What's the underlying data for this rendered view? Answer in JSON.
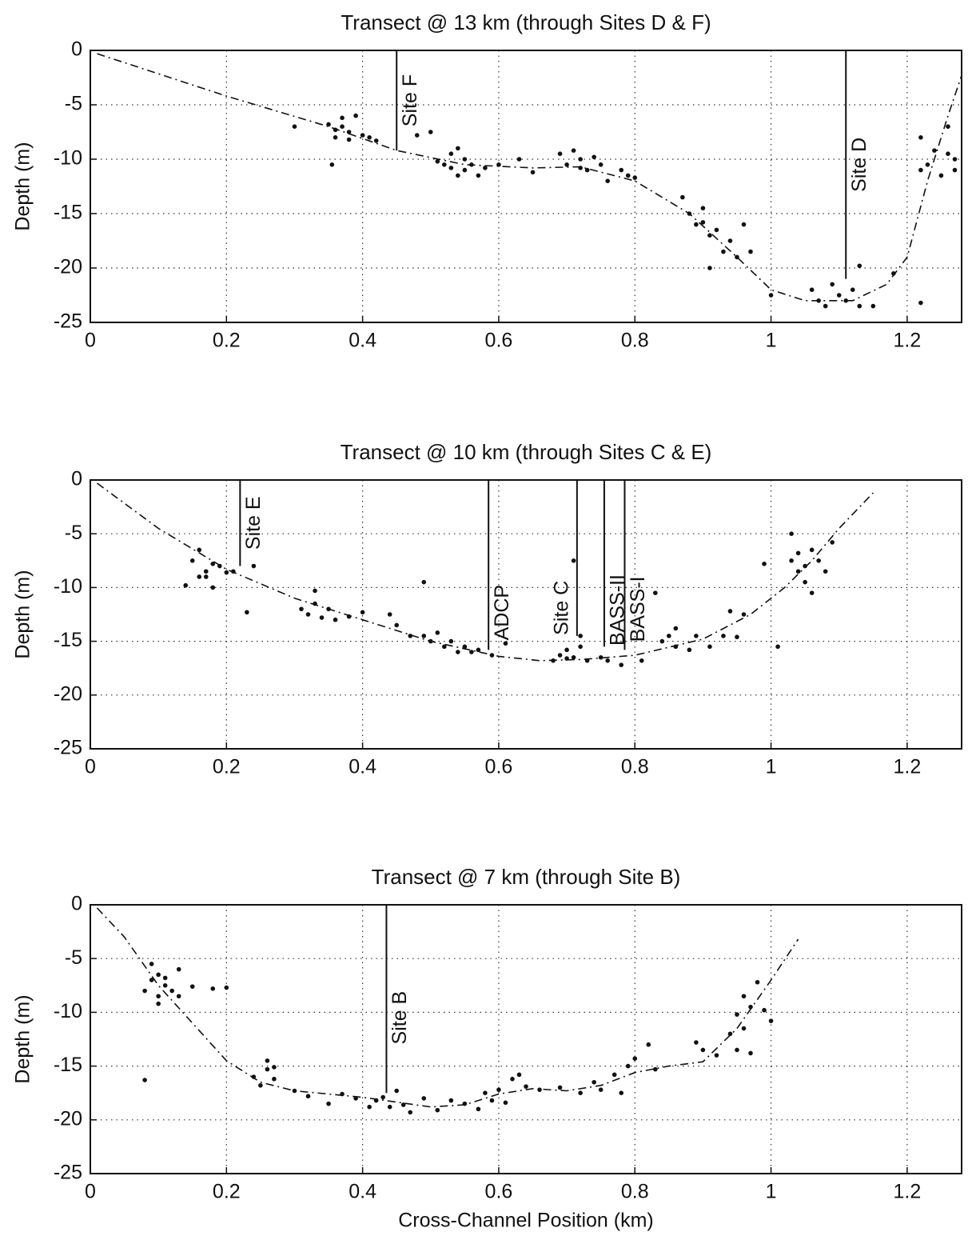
{
  "chart_data": [
    {
      "type": "scatter",
      "title": "Transect @ 13 km (through Sites D & F)",
      "ylabel": "Depth (m)",
      "xlim": [
        0,
        1.28
      ],
      "ylim": [
        -25,
        0
      ],
      "xticks": [
        0,
        0.2,
        0.4,
        0.6,
        0.8,
        1,
        1.2
      ],
      "yticks": [
        -25,
        -20,
        -15,
        -10,
        -5,
        0
      ],
      "grid": true,
      "color": "#111111",
      "points": {
        "x": [
          0.3,
          0.35,
          0.36,
          0.37,
          0.37,
          0.38,
          0.36,
          0.39,
          0.38,
          0.355,
          0.4,
          0.41,
          0.42,
          0.48,
          0.5,
          0.51,
          0.52,
          0.53,
          0.53,
          0.54,
          0.54,
          0.55,
          0.55,
          0.56,
          0.57,
          0.58,
          0.6,
          0.63,
          0.65,
          0.69,
          0.7,
          0.71,
          0.72,
          0.72,
          0.73,
          0.74,
          0.75,
          0.76,
          0.78,
          0.79,
          0.8,
          0.87,
          0.88,
          0.89,
          0.9,
          0.9,
          0.91,
          0.91,
          0.92,
          0.93,
          0.94,
          0.95,
          0.96,
          0.97,
          1.0,
          1.06,
          1.07,
          1.08,
          1.09,
          1.1,
          1.11,
          1.12,
          1.13,
          1.13,
          1.15,
          1.18,
          1.22,
          1.22,
          1.22,
          1.23,
          1.24,
          1.25,
          1.26,
          1.26,
          1.27,
          1.27
        ],
        "y": [
          -7,
          -6.8,
          -7.3,
          -7,
          -6.2,
          -7.5,
          -8,
          -6,
          -8.2,
          -10.5,
          -7.8,
          -8,
          -8.3,
          -7.8,
          -7.5,
          -10.2,
          -10.5,
          -9.5,
          -10.8,
          -11.5,
          -9,
          -10,
          -11,
          -10.5,
          -11.5,
          -10.8,
          -10.5,
          -10,
          -11.2,
          -9.5,
          -10.5,
          -9.2,
          -10.8,
          -10,
          -11,
          -9.8,
          -10.5,
          -12,
          -11,
          -11.5,
          -11.7,
          -13.5,
          -15,
          -16,
          -14.5,
          -15.8,
          -17,
          -20,
          -16.5,
          -18.5,
          -17.5,
          -19,
          -16,
          -18.5,
          -22.5,
          -22,
          -23,
          -23.5,
          -21.5,
          -22.5,
          -23,
          -22,
          -23.5,
          -19.8,
          -23.5,
          -20.5,
          -23.2,
          -11,
          -8,
          -10.5,
          -9.2,
          -11.5,
          -9.5,
          -7,
          -11,
          -10
        ]
      },
      "fit": {
        "x": [
          0.01,
          0.2,
          0.35,
          0.45,
          0.55,
          0.65,
          0.72,
          0.8,
          0.88,
          0.95,
          1.0,
          1.05,
          1.12,
          1.17,
          1.2,
          1.23,
          1.26,
          1.28
        ],
        "y": [
          -0.3,
          -4.2,
          -7,
          -9.2,
          -10.5,
          -10.8,
          -10.7,
          -12,
          -15,
          -19,
          -22,
          -23,
          -23,
          -21.5,
          -19,
          -12,
          -6,
          -2.3
        ]
      },
      "sites": [
        {
          "label": "Site F",
          "x": 0.45,
          "y": [
            0,
            -9.2
          ]
        },
        {
          "label": "Site D",
          "x": 1.11,
          "y": [
            0,
            -21
          ]
        }
      ]
    },
    {
      "type": "scatter",
      "title": "Transect @ 10 km (through Sites C & E)",
      "ylabel": "Depth (m)",
      "xlim": [
        0,
        1.28
      ],
      "ylim": [
        -25,
        0
      ],
      "xticks": [
        0,
        0.2,
        0.4,
        0.6,
        0.8,
        1,
        1.2
      ],
      "yticks": [
        -25,
        -20,
        -15,
        -10,
        -5,
        0
      ],
      "grid": true,
      "color": "#111111",
      "points": {
        "x": [
          0.14,
          0.15,
          0.16,
          0.16,
          0.17,
          0.17,
          0.18,
          0.18,
          0.19,
          0.2,
          0.21,
          0.23,
          0.24,
          0.31,
          0.32,
          0.33,
          0.33,
          0.34,
          0.35,
          0.36,
          0.38,
          0.4,
          0.44,
          0.45,
          0.47,
          0.49,
          0.49,
          0.5,
          0.51,
          0.52,
          0.53,
          0.54,
          0.55,
          0.56,
          0.57,
          0.59,
          0.61,
          0.68,
          0.69,
          0.7,
          0.7,
          0.71,
          0.71,
          0.72,
          0.72,
          0.73,
          0.75,
          0.76,
          0.78,
          0.81,
          0.83,
          0.84,
          0.85,
          0.86,
          0.86,
          0.88,
          0.89,
          0.91,
          0.93,
          0.94,
          0.95,
          0.96,
          0.99,
          1.01,
          1.03,
          1.03,
          1.04,
          1.04,
          1.05,
          1.05,
          1.06,
          1.06,
          1.07,
          1.08,
          1.09
        ],
        "y": [
          -9.8,
          -7.5,
          -9,
          -6.5,
          -8.5,
          -9,
          -7.8,
          -10,
          -8,
          -8.6,
          -8.5,
          -12.3,
          -8,
          -12,
          -12.5,
          -11.5,
          -10.3,
          -12.8,
          -12,
          -13,
          -12.7,
          -12.3,
          -12.5,
          -13.5,
          -14.5,
          -9.5,
          -14.5,
          -15,
          -14.2,
          -15.5,
          -15,
          -16,
          -15.5,
          -16,
          -15.8,
          -16.3,
          -15.2,
          -16.8,
          -16.3,
          -16.6,
          -15.8,
          -7.5,
          -16.5,
          -14.5,
          -15.5,
          -16.8,
          -16.5,
          -16.8,
          -17.2,
          -16.8,
          -10.5,
          -15,
          -14.5,
          -15.5,
          -13.8,
          -15.8,
          -14.5,
          -15.5,
          -14.5,
          -12.2,
          -14.6,
          -12.5,
          -7.8,
          -15.5,
          -5,
          -7.5,
          -8.5,
          -6.8,
          -8,
          -9.5,
          -6.5,
          -10.5,
          -7.5,
          -8.5,
          -5.8
        ]
      },
      "fit": {
        "x": [
          0.01,
          0.1,
          0.2,
          0.3,
          0.4,
          0.5,
          0.6,
          0.66,
          0.72,
          0.8,
          0.9,
          0.97,
          1.02,
          1.06,
          1.1,
          1.15
        ],
        "y": [
          -0.3,
          -4.5,
          -8.3,
          -11,
          -13,
          -15,
          -16.4,
          -16.8,
          -16.7,
          -16.3,
          -14.8,
          -12.5,
          -10,
          -7.5,
          -4.5,
          -1.2
        ]
      },
      "sites": [
        {
          "label": "Site E",
          "x": 0.22,
          "y": [
            0,
            -8
          ]
        },
        {
          "label": "ADCP",
          "x": 0.585,
          "y": [
            0,
            -15.8
          ]
        },
        {
          "label": "Site C",
          "x": 0.715,
          "y": [
            0,
            -14.5
          ]
        },
        {
          "label": "BASS-II",
          "x": 0.755,
          "y": [
            0,
            -15.5
          ]
        },
        {
          "label": "BASS-I",
          "x": 0.785,
          "y": [
            0,
            -15.8
          ]
        }
      ]
    },
    {
      "type": "scatter",
      "title": "Transect @ 7 km (through Site B)",
      "xlabel": "Cross-Channel Position (km)",
      "ylabel": "Depth (m)",
      "xlim": [
        0,
        1.28
      ],
      "ylim": [
        -25,
        0
      ],
      "xticks": [
        0,
        0.2,
        0.4,
        0.6,
        0.8,
        1,
        1.2
      ],
      "yticks": [
        -25,
        -20,
        -15,
        -10,
        -5,
        0
      ],
      "grid": true,
      "color": "#111111",
      "points": {
        "x": [
          0.08,
          0.08,
          0.09,
          0.09,
          0.1,
          0.1,
          0.1,
          0.11,
          0.11,
          0.12,
          0.13,
          0.13,
          0.15,
          0.18,
          0.2,
          0.24,
          0.25,
          0.26,
          0.26,
          0.27,
          0.27,
          0.3,
          0.32,
          0.35,
          0.37,
          0.39,
          0.41,
          0.42,
          0.43,
          0.44,
          0.45,
          0.46,
          0.47,
          0.49,
          0.51,
          0.53,
          0.55,
          0.57,
          0.58,
          0.59,
          0.6,
          0.61,
          0.62,
          0.63,
          0.64,
          0.66,
          0.69,
          0.72,
          0.74,
          0.75,
          0.77,
          0.78,
          0.79,
          0.8,
          0.82,
          0.83,
          0.89,
          0.9,
          0.92,
          0.94,
          0.95,
          0.95,
          0.96,
          0.96,
          0.97,
          0.97,
          0.98,
          0.99,
          1.0
        ],
        "y": [
          -16.3,
          -8,
          -5.5,
          -7,
          -6.5,
          -8.5,
          -9.2,
          -7.5,
          -6.8,
          -8,
          -6,
          -8.5,
          -7.6,
          -7.8,
          -7.7,
          -16,
          -16.8,
          -15.3,
          -14.5,
          -16.2,
          -15.1,
          -17.3,
          -17.8,
          -18.5,
          -17.6,
          -18,
          -18.8,
          -18.2,
          -17.9,
          -18.8,
          -17.3,
          -18.6,
          -19.3,
          -18,
          -19.1,
          -18.2,
          -18.5,
          -19,
          -17.5,
          -18.2,
          -17.2,
          -18.4,
          -16.2,
          -15.8,
          -16.9,
          -17.2,
          -17,
          -17.5,
          -16.5,
          -17.2,
          -15.8,
          -17.5,
          -15,
          -14.3,
          -13,
          -15.3,
          -12.8,
          -13.5,
          -14,
          -12,
          -10.2,
          -13.5,
          -8.5,
          -11.5,
          -9.5,
          -13.8,
          -7.2,
          -9.8,
          -10.8
        ]
      },
      "fit": {
        "x": [
          0.01,
          0.05,
          0.1,
          0.15,
          0.2,
          0.25,
          0.3,
          0.4,
          0.5,
          0.55,
          0.6,
          0.65,
          0.7,
          0.75,
          0.8,
          0.85,
          0.9,
          0.95,
          1.0,
          1.04
        ],
        "y": [
          -0.3,
          -3,
          -7.5,
          -11,
          -14.5,
          -16.5,
          -17.3,
          -17.9,
          -18.8,
          -18.6,
          -17.6,
          -17.1,
          -17.3,
          -16.8,
          -15.6,
          -15,
          -14.6,
          -11.5,
          -7,
          -3.2
        ]
      },
      "sites": [
        {
          "label": "Site B",
          "x": 0.435,
          "y": [
            0,
            -17.5
          ]
        }
      ]
    }
  ]
}
